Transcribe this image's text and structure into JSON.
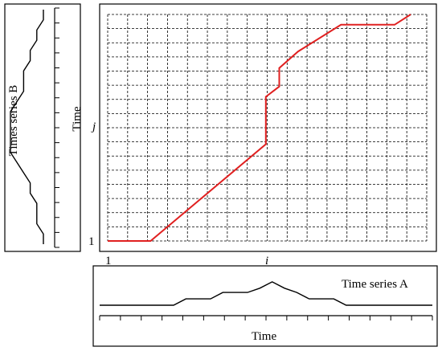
{
  "labels": {
    "series_b": "Times series B",
    "time_vertical": "Time",
    "j": "j",
    "one_left": "1",
    "one_bottom": "1",
    "i": "i",
    "series_a": "Time series A",
    "time_horizontal": "Time"
  },
  "grid": {
    "columns": 16,
    "rows": 16
  },
  "colors": {
    "warp_path": "#e02020",
    "grid": "#000000",
    "frame": "#000000"
  },
  "series_a_values": [
    0,
    0,
    0,
    0,
    0,
    0,
    0,
    1.5,
    1.5,
    1.5,
    3,
    3,
    3,
    4,
    5.5,
    4,
    3,
    1.5,
    1.5,
    1.5,
    0,
    0,
    0,
    0,
    0,
    0,
    0,
    0
  ],
  "series_b_values": [
    0,
    0,
    1,
    1,
    2,
    2,
    3,
    3,
    3,
    4,
    5,
    5,
    5,
    5,
    5,
    4,
    3,
    2,
    2,
    1,
    1,
    1,
    0,
    0
  ],
  "warp_path": [
    [
      0,
      0
    ],
    [
      1.6,
      0
    ],
    [
      5.9,
      4.7
    ],
    [
      5.9,
      7.0
    ],
    [
      6.4,
      7.5
    ],
    [
      6.4,
      8.4
    ],
    [
      7.1,
      9.2
    ],
    [
      8.7,
      10.5
    ],
    [
      10.7,
      10.5
    ],
    [
      11.3,
      11.0
    ]
  ]
}
